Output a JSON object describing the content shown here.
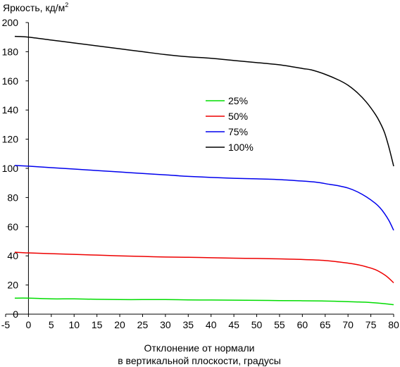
{
  "chart_data": {
    "type": "line",
    "ylabel": "Яркость, кд/м",
    "ylabel_superscript": "2",
    "xlabel_line1": "Отклонение от нормали",
    "xlabel_line2": "в вертикальной плоскости, градусы",
    "xlim": [
      -5,
      80
    ],
    "ylim": [
      0,
      200
    ],
    "x_ticks": [
      -5,
      0,
      5,
      10,
      15,
      20,
      25,
      30,
      35,
      40,
      45,
      50,
      55,
      60,
      65,
      70,
      75,
      80
    ],
    "y_ticks": [
      0,
      20,
      40,
      60,
      80,
      100,
      120,
      140,
      160,
      180,
      200
    ],
    "grid": false,
    "legend_position": "center",
    "series": [
      {
        "name": "25%",
        "color": "#00dd00",
        "points": [
          [
            -3,
            11
          ],
          [
            0,
            11
          ],
          [
            5,
            10.5
          ],
          [
            10,
            10.5
          ],
          [
            15,
            10.2
          ],
          [
            20,
            10
          ],
          [
            25,
            10
          ],
          [
            30,
            10
          ],
          [
            35,
            9.8
          ],
          [
            40,
            9.7
          ],
          [
            45,
            9.6
          ],
          [
            50,
            9.5
          ],
          [
            55,
            9.3
          ],
          [
            60,
            9.2
          ],
          [
            65,
            9
          ],
          [
            70,
            8.6
          ],
          [
            75,
            8
          ],
          [
            78,
            7.2
          ],
          [
            80,
            6.5
          ]
        ]
      },
      {
        "name": "50%",
        "color": "#ee0000",
        "points": [
          [
            -3,
            42.5
          ],
          [
            0,
            42
          ],
          [
            5,
            41.5
          ],
          [
            10,
            41
          ],
          [
            15,
            40.5
          ],
          [
            20,
            40
          ],
          [
            25,
            39.6
          ],
          [
            30,
            39.2
          ],
          [
            35,
            39
          ],
          [
            40,
            38.7
          ],
          [
            45,
            38.4
          ],
          [
            50,
            38.2
          ],
          [
            55,
            37.9
          ],
          [
            60,
            37.5
          ],
          [
            65,
            36.8
          ],
          [
            68,
            35.8
          ],
          [
            70,
            35
          ],
          [
            72,
            34
          ],
          [
            74,
            32.5
          ],
          [
            76,
            30.5
          ],
          [
            78,
            27
          ],
          [
            79,
            24.5
          ],
          [
            80,
            21.5
          ]
        ]
      },
      {
        "name": "75%",
        "color": "#0000ee",
        "points": [
          [
            -3,
            102
          ],
          [
            0,
            101.5
          ],
          [
            5,
            100.5
          ],
          [
            10,
            99.5
          ],
          [
            15,
            98.5
          ],
          [
            20,
            97.5
          ],
          [
            25,
            96.5
          ],
          [
            30,
            95.5
          ],
          [
            35,
            94.5
          ],
          [
            40,
            93.8
          ],
          [
            45,
            93.2
          ],
          [
            50,
            92.8
          ],
          [
            55,
            92.3
          ],
          [
            60,
            91.3
          ],
          [
            63,
            90.5
          ],
          [
            66,
            89
          ],
          [
            68,
            88
          ],
          [
            70,
            86.5
          ],
          [
            72,
            84
          ],
          [
            74,
            80.5
          ],
          [
            76,
            76
          ],
          [
            77,
            73
          ],
          [
            78,
            69
          ],
          [
            79,
            64
          ],
          [
            80,
            57.5
          ]
        ]
      },
      {
        "name": "100%",
        "color": "#000000",
        "points": [
          [
            -3,
            190.5
          ],
          [
            0,
            190
          ],
          [
            5,
            188
          ],
          [
            10,
            186
          ],
          [
            15,
            184
          ],
          [
            20,
            182
          ],
          [
            25,
            180
          ],
          [
            30,
            178
          ],
          [
            35,
            176.5
          ],
          [
            40,
            175.5
          ],
          [
            45,
            174
          ],
          [
            50,
            172.5
          ],
          [
            55,
            171
          ],
          [
            60,
            168.5
          ],
          [
            62,
            167.5
          ],
          [
            65,
            164.5
          ],
          [
            68,
            160.5
          ],
          [
            70,
            157
          ],
          [
            72,
            152
          ],
          [
            74,
            145.5
          ],
          [
            76,
            137
          ],
          [
            77,
            131.5
          ],
          [
            78,
            124.5
          ],
          [
            79,
            114
          ],
          [
            80,
            101.5
          ]
        ]
      }
    ]
  }
}
